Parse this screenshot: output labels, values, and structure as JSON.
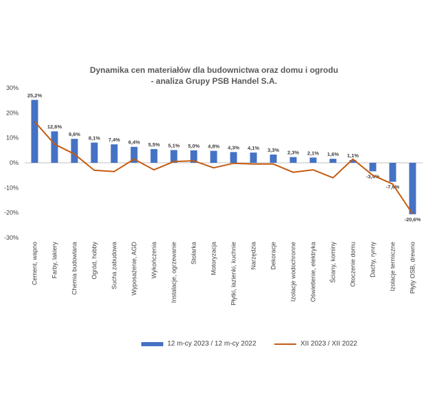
{
  "chart_data": {
    "type": "bar",
    "title": "Dynamika cen materiałów dla budownictwa oraz domu i ogrodu",
    "subtitle": "- analiza Grupy PSB Handel S.A.",
    "categories": [
      "Cement, wapno",
      "Farby, lakiery",
      "Chemia budowlana",
      "Ogród, hobby",
      "Sucha zabudowa",
      "Wyposażenie, AGD",
      "Wykończenia",
      "Instalacje, ogrzewanie",
      "Stolarka",
      "Motoryzacja",
      "Płytki, łazienki, kuchnie",
      "Narzędzia",
      "Dekoracje",
      "Izolacje wodochronne",
      "Oświetlenie, elektryka",
      "Ściany, kominy",
      "Otoczenie domu",
      "Dachy, rynny",
      "Izolacje termiczne",
      "Płyty OSB, drewno"
    ],
    "series": [
      {
        "name": "12 m-cy 2023 / 12 m-cy 2022",
        "type": "bar",
        "color": "#4472C4",
        "values": [
          25.2,
          12.6,
          9.6,
          8.1,
          7.4,
          6.4,
          5.5,
          5.1,
          5.0,
          4.8,
          4.3,
          4.1,
          3.3,
          2.3,
          2.1,
          1.6,
          1.1,
          -3.4,
          -7.6,
          -20.6
        ],
        "labels": [
          "25,2%",
          "12,6%",
          "9,6%",
          "8,1%",
          "7,4%",
          "6,4%",
          "5,5%",
          "5,1%",
          "5,0%",
          "4,8%",
          "4,3%",
          "4,1%",
          "3,3%",
          "2,3%",
          "2,1%",
          "1,6%",
          "1,1%",
          "-3,4%",
          "-7,6%",
          "-20,6%"
        ]
      },
      {
        "name": "XII 2023 / XII 2022",
        "type": "line",
        "color": "#C55A11",
        "values": [
          16.5,
          7.5,
          3.5,
          -3.0,
          -3.5,
          1.5,
          -2.8,
          0.5,
          0.8,
          -2.0,
          -0.2,
          -0.5,
          -0.5,
          -3.8,
          -2.8,
          -6.0,
          1.5,
          -5.0,
          -8.5,
          -20.5
        ]
      }
    ],
    "ylim": [
      -30,
      30
    ],
    "yticks": [
      30,
      20,
      10,
      0,
      -10,
      -20,
      -30
    ],
    "ytick_labels": [
      "30%",
      "20%",
      "10%",
      "0%",
      "-10%",
      "-20%",
      "-30%"
    ],
    "xlabel": "",
    "ylabel": "",
    "grid": false,
    "legend_position": "bottom"
  }
}
